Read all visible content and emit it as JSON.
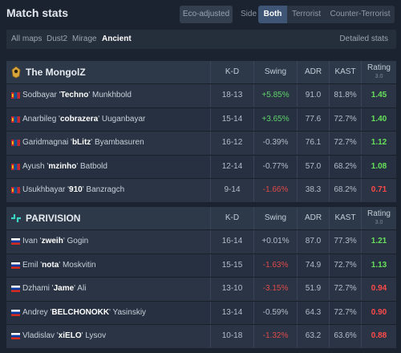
{
  "header": {
    "title": "Match stats",
    "eco_label": "Eco-adjusted",
    "side_label": "Side",
    "side_options": [
      "Both",
      "Terrorist",
      "Counter-Terrorist"
    ],
    "side_selected": "Both"
  },
  "maps": {
    "items": [
      "All maps",
      "Dust2",
      "Mirage",
      "Ancient"
    ],
    "active": "Ancient",
    "detailed_label": "Detailed stats"
  },
  "columns": {
    "kd": "K-D",
    "swing": "Swing",
    "adr": "ADR",
    "kast": "KAST",
    "rating": "Rating",
    "rating_sub": "3.0"
  },
  "colors": {
    "positive": "#5fd36a",
    "negative": "#e04a4a",
    "rating_good": "#67e05a",
    "rating_bad": "#ff4a4a",
    "accent": "#3e5576"
  },
  "teams": [
    {
      "name": "The MongolZ",
      "logo_icon": "mongolz-logo",
      "flag": "mongolia",
      "players": [
        {
          "first": "Sodbayar '",
          "nick": "Techno",
          "last": "' Munkhbold",
          "kd": "18-13",
          "swing": "+5.85%",
          "swing_sign": "pos",
          "adr": "91.0",
          "kast": "81.8%",
          "rating": "1.45",
          "rating_good": true
        },
        {
          "first": "Anarbileg '",
          "nick": "cobrazera",
          "last": "' Uuganbayar",
          "kd": "15-14",
          "swing": "+3.65%",
          "swing_sign": "pos",
          "adr": "77.6",
          "kast": "72.7%",
          "rating": "1.40",
          "rating_good": true
        },
        {
          "first": "Garidmagnai '",
          "nick": "bLitz",
          "last": "' Byambasuren",
          "kd": "16-12",
          "swing": "-0.39%",
          "swing_sign": "neu",
          "adr": "76.1",
          "kast": "72.7%",
          "rating": "1.12",
          "rating_good": true
        },
        {
          "first": "Ayush '",
          "nick": "mzinho",
          "last": "' Batbold",
          "kd": "12-14",
          "swing": "-0.77%",
          "swing_sign": "neu",
          "adr": "57.0",
          "kast": "68.2%",
          "rating": "1.08",
          "rating_good": true
        },
        {
          "first": "Usukhbayar '",
          "nick": "910",
          "last": "' Banzragch",
          "kd": "9-14",
          "swing": "-1.66%",
          "swing_sign": "neg",
          "adr": "38.3",
          "kast": "68.2%",
          "rating": "0.71",
          "rating_good": false
        }
      ]
    },
    {
      "name": "PARIVISION",
      "logo_icon": "parivision-logo",
      "flag": "russia",
      "players": [
        {
          "first": "Ivan '",
          "nick": "zweih",
          "last": "' Gogin",
          "kd": "16-14",
          "swing": "+0.01%",
          "swing_sign": "neu",
          "adr": "87.0",
          "kast": "77.3%",
          "rating": "1.21",
          "rating_good": true
        },
        {
          "first": "Emil '",
          "nick": "nota",
          "last": "' Moskvitin",
          "kd": "15-15",
          "swing": "-1.63%",
          "swing_sign": "neg",
          "adr": "74.9",
          "kast": "72.7%",
          "rating": "1.13",
          "rating_good": true
        },
        {
          "first": "Dzhami '",
          "nick": "Jame",
          "last": "' Ali",
          "kd": "13-10",
          "swing": "-3.15%",
          "swing_sign": "neg",
          "adr": "51.9",
          "kast": "72.7%",
          "rating": "0.94",
          "rating_good": false
        },
        {
          "first": "Andrey '",
          "nick": "BELCHONOKK",
          "last": "' Yasinskiy",
          "kd": "13-14",
          "swing": "-0.59%",
          "swing_sign": "neu",
          "adr": "64.3",
          "kast": "72.7%",
          "rating": "0.90",
          "rating_good": false
        },
        {
          "first": "Vladislav '",
          "nick": "xiELO",
          "last": "' Lysov",
          "kd": "10-18",
          "swing": "-1.32%",
          "swing_sign": "neg",
          "adr": "63.2",
          "kast": "63.6%",
          "rating": "0.88",
          "rating_good": false
        }
      ]
    }
  ]
}
